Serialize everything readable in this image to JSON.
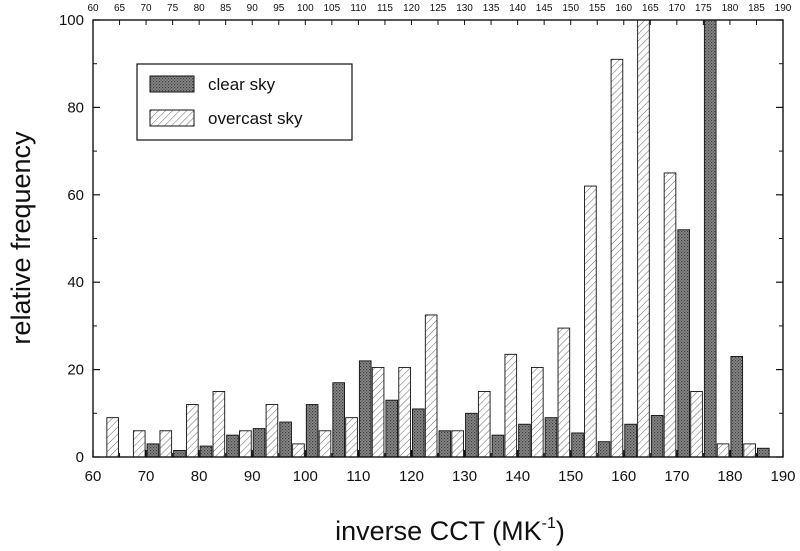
{
  "chart_data": {
    "type": "bar",
    "xlabel": "inverse CCT (MK",
    "xlabel_sup": "-1",
    "xlabel_close": ")",
    "ylabel": "relative frequency",
    "xlim": [
      60,
      190
    ],
    "ylim": [
      0,
      100
    ],
    "x_ticks": [
      60,
      70,
      80,
      90,
      100,
      110,
      120,
      130,
      140,
      150,
      160,
      170,
      180,
      190
    ],
    "x_top_ticks": [
      60,
      65,
      70,
      75,
      80,
      85,
      90,
      95,
      100,
      105,
      110,
      115,
      120,
      125,
      130,
      135,
      140,
      145,
      150,
      155,
      160,
      165,
      170,
      175,
      180,
      185,
      190
    ],
    "y_ticks": [
      0,
      20,
      40,
      60,
      80,
      100
    ],
    "bin_width": 5,
    "legend_position": "top-left",
    "series": [
      {
        "name": "clear sky",
        "style": "dark-stippled",
        "x": [
          70,
          75,
          80,
          85,
          90,
          95,
          100,
          105,
          110,
          115,
          120,
          125,
          130,
          135,
          140,
          145,
          150,
          155,
          160,
          165,
          170,
          175,
          180,
          185
        ],
        "values": [
          3,
          1.5,
          2.5,
          5,
          6.5,
          8,
          12,
          17,
          22,
          13,
          11,
          6,
          10,
          5,
          7.5,
          9,
          5.5,
          3.5,
          7.5,
          9.5,
          52,
          100,
          23,
          2
        ]
      },
      {
        "name": "overcast sky",
        "style": "hatched",
        "x": [
          65,
          70,
          75,
          80,
          85,
          90,
          95,
          100,
          105,
          110,
          115,
          120,
          125,
          130,
          135,
          140,
          145,
          150,
          155,
          160,
          165,
          170,
          175,
          180,
          185
        ],
        "values": [
          9,
          6,
          6,
          12,
          15,
          6,
          12,
          3,
          6,
          9,
          20.5,
          20.5,
          32.5,
          6,
          15,
          23.5,
          20.5,
          29.5,
          62,
          91,
          100,
          65,
          15,
          3,
          3
        ]
      }
    ]
  }
}
